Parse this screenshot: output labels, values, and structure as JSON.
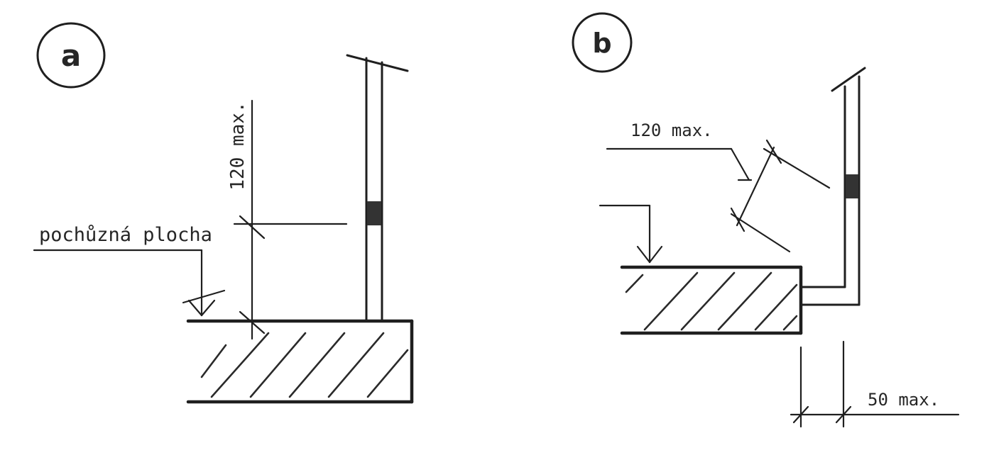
{
  "panels": {
    "a": {
      "letter": "a",
      "walk_surface_label": "pochůzná plocha",
      "height_dimension_label": "120 max."
    },
    "b": {
      "letter": "b",
      "height_dimension_label": "120 max.",
      "gap_dimension_label": "50 max."
    }
  },
  "colors": {
    "ink": "#1f1f1f",
    "background": "#ffffff"
  }
}
